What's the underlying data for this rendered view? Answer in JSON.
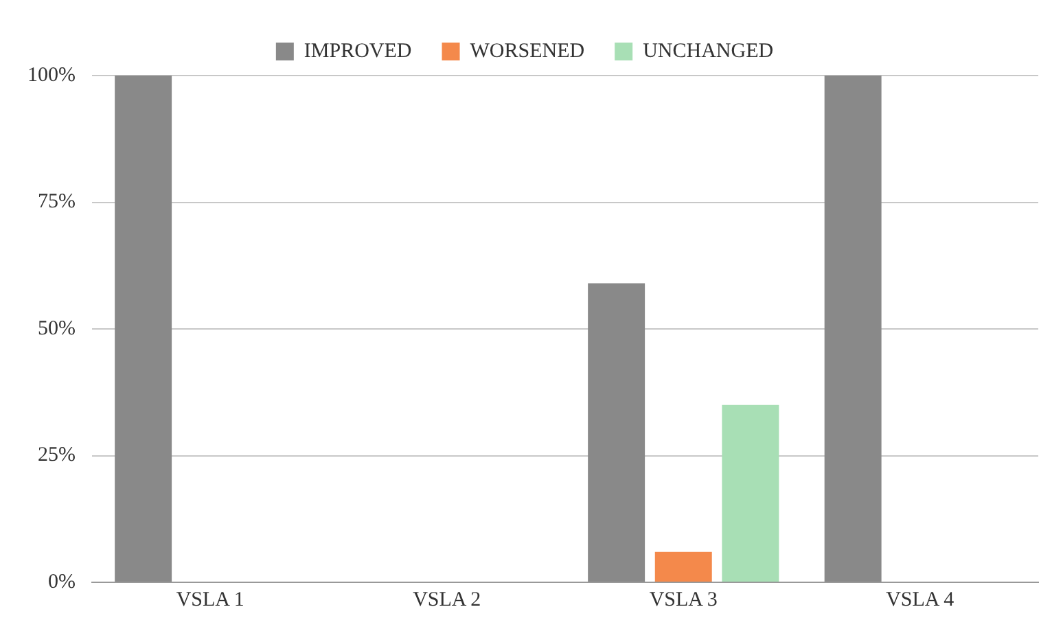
{
  "chart_data": {
    "type": "bar",
    "categories": [
      "VSLA 1",
      "VSLA 2",
      "VSLA 3",
      "VSLA 4"
    ],
    "series": [
      {
        "name": "IMPROVED",
        "color": "#898989",
        "values": [
          100,
          0,
          59,
          100
        ]
      },
      {
        "name": "WORSENED",
        "color": "#f4894b",
        "values": [
          0,
          0,
          6,
          0
        ]
      },
      {
        "name": "UNCHANGED",
        "color": "#a8dfb5",
        "values": [
          0,
          0,
          35,
          0
        ]
      }
    ],
    "ylim": [
      0,
      100
    ],
    "yticks": [
      {
        "value": 0,
        "label": "0%"
      },
      {
        "value": 25,
        "label": "25%"
      },
      {
        "value": 50,
        "label": "50%"
      },
      {
        "value": 75,
        "label": "75%"
      },
      {
        "value": 100,
        "label": "100%"
      }
    ],
    "grid": "y",
    "legend": "top"
  }
}
